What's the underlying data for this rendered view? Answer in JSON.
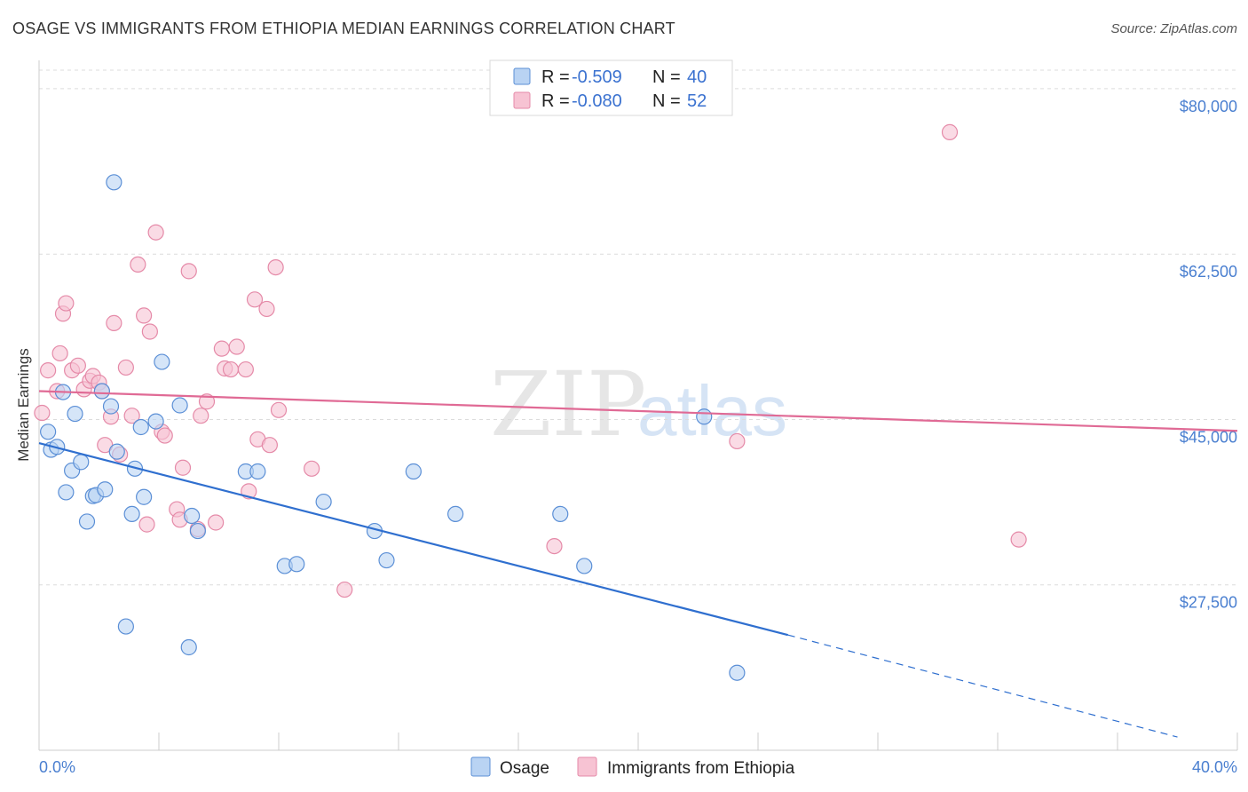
{
  "title": "OSAGE VS IMMIGRANTS FROM ETHIOPIA MEDIAN EARNINGS CORRELATION CHART",
  "source": "Source: ZipAtlas.com",
  "watermark": {
    "part1": "ZIP",
    "part2": "atlas"
  },
  "colors": {
    "osage_fill": "#b9d3f3",
    "osage_stroke": "#5b8fd6",
    "osage_line": "#2f6fcf",
    "ethiopia_fill": "#f7c3d3",
    "ethiopia_stroke": "#e58aa8",
    "ethiopia_line": "#e06a95",
    "grid": "#dcdcdc",
    "tick_text": "#4a7fd0"
  },
  "legend": {
    "rows": [
      {
        "r_label": "R =",
        "r_value": "-0.509",
        "n_label": "N =",
        "n_value": "40"
      },
      {
        "r_label": "R =",
        "r_value": "-0.080",
        "n_label": "N =",
        "n_value": "52"
      }
    ]
  },
  "bottom_legend": [
    "Osage",
    "Immigrants from Ethiopia"
  ],
  "chart_data": {
    "type": "scatter",
    "title": "OSAGE VS IMMIGRANTS FROM ETHIOPIA MEDIAN EARNINGS CORRELATION CHART",
    "xlabel": "",
    "ylabel": "Median Earnings",
    "xlim": [
      0,
      40
    ],
    "ylim": [
      10000,
      83000
    ],
    "x_tick_labels": [
      "0.0%",
      "40.0%"
    ],
    "y_ticks": [
      27500,
      45000,
      62500,
      80000
    ],
    "y_tick_labels": [
      "$27,500",
      "$45,000",
      "$62,500",
      "$80,000"
    ],
    "series": [
      {
        "name": "Osage",
        "points": [
          [
            0.3,
            43700
          ],
          [
            0.4,
            41800
          ],
          [
            0.6,
            42100
          ],
          [
            0.8,
            47900
          ],
          [
            0.9,
            37300
          ],
          [
            1.1,
            39600
          ],
          [
            1.2,
            45600
          ],
          [
            1.4,
            40500
          ],
          [
            1.6,
            34200
          ],
          [
            1.8,
            36900
          ],
          [
            1.9,
            37000
          ],
          [
            2.1,
            48000
          ],
          [
            2.2,
            37600
          ],
          [
            2.4,
            46400
          ],
          [
            2.6,
            41600
          ],
          [
            2.9,
            23100
          ],
          [
            3.1,
            35000
          ],
          [
            3.2,
            39800
          ],
          [
            3.4,
            44200
          ],
          [
            3.5,
            36800
          ],
          [
            3.9,
            44800
          ],
          [
            4.1,
            51100
          ],
          [
            4.7,
            46500
          ],
          [
            5.0,
            20900
          ],
          [
            5.1,
            34800
          ],
          [
            5.3,
            33200
          ],
          [
            6.9,
            39500
          ],
          [
            7.3,
            39500
          ],
          [
            8.2,
            29500
          ],
          [
            8.6,
            29700
          ],
          [
            9.5,
            36300
          ],
          [
            11.2,
            33200
          ],
          [
            11.6,
            30100
          ],
          [
            12.5,
            39500
          ],
          [
            13.9,
            35000
          ],
          [
            17.4,
            35000
          ],
          [
            18.2,
            29500
          ],
          [
            22.2,
            45300
          ],
          [
            23.3,
            18200
          ],
          [
            2.5,
            70100
          ]
        ]
      },
      {
        "name": "Immigrants from Ethiopia",
        "points": [
          [
            0.1,
            45700
          ],
          [
            0.3,
            50200
          ],
          [
            0.6,
            48000
          ],
          [
            0.7,
            52000
          ],
          [
            0.8,
            56200
          ],
          [
            0.9,
            57300
          ],
          [
            1.1,
            50200
          ],
          [
            1.3,
            50700
          ],
          [
            1.5,
            48200
          ],
          [
            1.7,
            49100
          ],
          [
            1.8,
            49600
          ],
          [
            2.0,
            48900
          ],
          [
            2.1,
            48000
          ],
          [
            2.2,
            42300
          ],
          [
            2.4,
            45300
          ],
          [
            2.5,
            55200
          ],
          [
            2.7,
            41300
          ],
          [
            2.9,
            50500
          ],
          [
            3.1,
            45400
          ],
          [
            3.3,
            61400
          ],
          [
            3.5,
            56000
          ],
          [
            3.6,
            33900
          ],
          [
            3.7,
            54300
          ],
          [
            3.9,
            64800
          ],
          [
            4.1,
            43700
          ],
          [
            4.2,
            43300
          ],
          [
            4.6,
            35500
          ],
          [
            4.7,
            34400
          ],
          [
            4.8,
            39900
          ],
          [
            5.0,
            60700
          ],
          [
            5.3,
            33400
          ],
          [
            5.4,
            45400
          ],
          [
            5.6,
            46900
          ],
          [
            5.9,
            34100
          ],
          [
            6.1,
            52500
          ],
          [
            6.2,
            50400
          ],
          [
            6.4,
            50300
          ],
          [
            6.6,
            52700
          ],
          [
            6.9,
            50300
          ],
          [
            7.0,
            37400
          ],
          [
            7.2,
            57700
          ],
          [
            7.3,
            42900
          ],
          [
            7.6,
            56700
          ],
          [
            7.7,
            42300
          ],
          [
            7.9,
            61100
          ],
          [
            8.0,
            46000
          ],
          [
            9.1,
            39800
          ],
          [
            10.2,
            27000
          ],
          [
            17.2,
            31600
          ],
          [
            23.3,
            42700
          ],
          [
            30.4,
            75400
          ],
          [
            32.7,
            32300
          ]
        ]
      }
    ],
    "trend_lines": [
      {
        "series": "Osage",
        "from": [
          0,
          42500
        ],
        "to": [
          25,
          22200
        ],
        "dashed_to": [
          38,
          11400
        ]
      },
      {
        "series": "Immigrants from Ethiopia",
        "from": [
          0,
          48000
        ],
        "to": [
          40,
          43800
        ]
      }
    ]
  }
}
